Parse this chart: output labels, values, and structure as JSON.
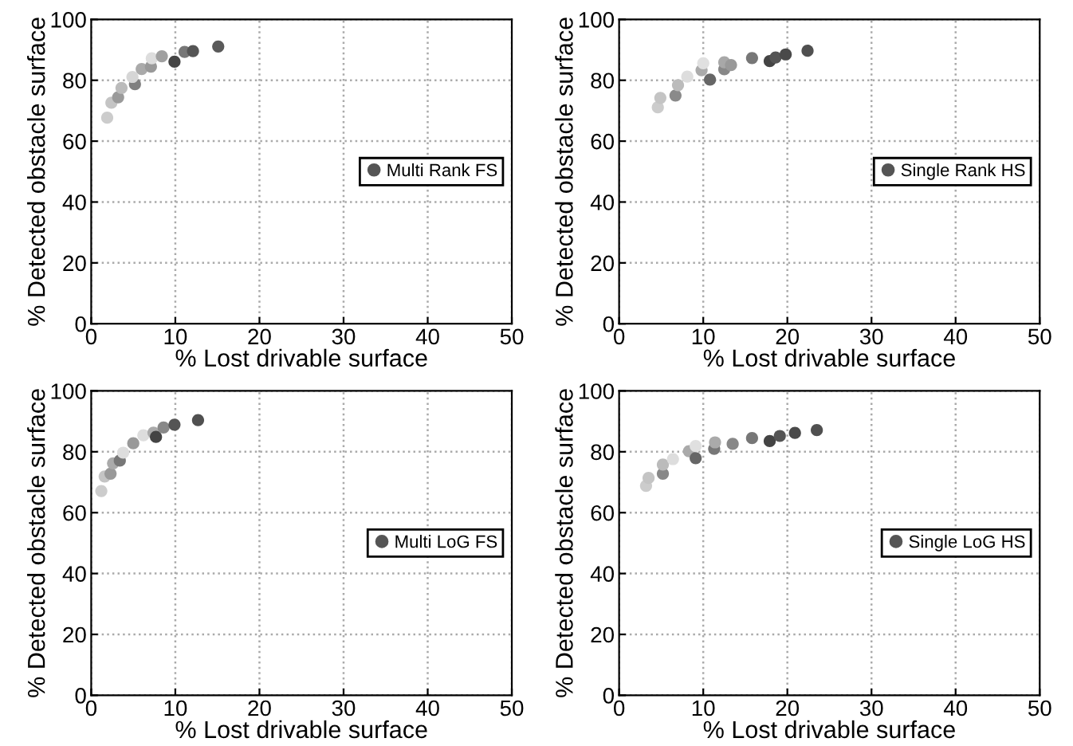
{
  "chart_data": [
    {
      "type": "scatter",
      "xlabel": "% Lost drivable surface",
      "ylabel": "% Detected obstacle surface",
      "xlim": [
        0,
        50
      ],
      "ylim": [
        0,
        100
      ],
      "xticks": [
        0,
        10,
        20,
        30,
        40,
        50
      ],
      "yticks": [
        0,
        20,
        40,
        60,
        80,
        100
      ],
      "grid": true,
      "legend": "right",
      "marker": "circle",
      "series": [
        {
          "name": "Multi Rank FS",
          "color": "#555555",
          "x": [
            1.9,
            2.4,
            3.2,
            3.6,
            5.2,
            4.9,
            6.0,
            7.1,
            7.2,
            8.4,
            9.9,
            11.1,
            12.1,
            15.1
          ],
          "values": [
            67.7,
            72.6,
            74.4,
            77.5,
            78.7,
            81.1,
            83.7,
            84.5,
            87.2,
            87.9,
            86.1,
            89.3,
            89.6,
            91.1
          ],
          "colors": [
            "#cccccc",
            "#c4c4c4",
            "#9a9a9a",
            "#bbbbbb",
            "#808080",
            "#d6d6d6",
            "#aaaaaa",
            "#999999",
            "#dddddd",
            "#a0a0a0",
            "#444444",
            "#777777",
            "#555555",
            "#5a5a5a"
          ]
        }
      ]
    },
    {
      "type": "scatter",
      "xlabel": "% Lost drivable surface",
      "ylabel": "% Detected obstacle surface",
      "xlim": [
        0,
        50
      ],
      "ylim": [
        0,
        100
      ],
      "xticks": [
        0,
        10,
        20,
        30,
        40,
        50
      ],
      "yticks": [
        0,
        20,
        40,
        60,
        80,
        100
      ],
      "grid": true,
      "legend": "right",
      "marker": "circle",
      "series": [
        {
          "name": "Single Rank HS",
          "color": "#555555",
          "x": [
            4.6,
            4.9,
            6.7,
            7.0,
            8.1,
            9.8,
            10.0,
            10.8,
            12.5,
            12.5,
            13.3,
            15.8,
            17.9,
            18.6,
            19.8,
            22.4
          ],
          "values": [
            71.1,
            74.2,
            75.0,
            78.4,
            81.2,
            83.3,
            85.6,
            80.2,
            83.6,
            85.9,
            85.0,
            87.3,
            86.3,
            87.5,
            88.5,
            89.7
          ],
          "colors": [
            "#cccccc",
            "#c4c4c4",
            "#8a8a8a",
            "#bbbbbb",
            "#dddddd",
            "#aaaaaa",
            "#e0e0e0",
            "#666666",
            "#888888",
            "#a8a8a8",
            "#999999",
            "#777777",
            "#444444",
            "#555555",
            "#4a4a4a",
            "#505050"
          ]
        }
      ]
    },
    {
      "type": "scatter",
      "xlabel": "% Lost drivable surface",
      "ylabel": "% Detected obstacle surface",
      "xlim": [
        0,
        50
      ],
      "ylim": [
        0,
        100
      ],
      "xticks": [
        0,
        10,
        20,
        30,
        40,
        50
      ],
      "yticks": [
        0,
        20,
        40,
        60,
        80,
        100
      ],
      "grid": true,
      "legend": "right",
      "marker": "circle",
      "series": [
        {
          "name": "Multi LoG FS",
          "color": "#555555",
          "x": [
            1.2,
            1.6,
            2.3,
            2.6,
            3.4,
            3.8,
            5.0,
            6.2,
            7.4,
            7.7,
            8.6,
            9.9,
            12.7
          ],
          "values": [
            67.1,
            71.9,
            72.8,
            76.2,
            77.1,
            79.7,
            82.8,
            85.4,
            86.3,
            84.9,
            88.0,
            88.9,
            90.4
          ],
          "colors": [
            "#cccccc",
            "#c4c4c4",
            "#999999",
            "#aaaaaa",
            "#777777",
            "#dddddd",
            "#999999",
            "#dddddd",
            "#aaaaaa",
            "#444444",
            "#888888",
            "#555555",
            "#505050"
          ]
        }
      ]
    },
    {
      "type": "scatter",
      "xlabel": "% Lost drivable surface",
      "ylabel": "% Detected obstacle surface",
      "xlim": [
        0,
        50
      ],
      "ylim": [
        0,
        100
      ],
      "xticks": [
        0,
        10,
        20,
        30,
        40,
        50
      ],
      "yticks": [
        0,
        20,
        40,
        60,
        80,
        100
      ],
      "grid": true,
      "legend": "right",
      "marker": "circle",
      "series": [
        {
          "name": "Single LoG HS",
          "color": "#555555",
          "x": [
            3.2,
            3.5,
            5.2,
            5.2,
            6.4,
            8.3,
            9.1,
            9.1,
            11.3,
            11.4,
            13.5,
            15.8,
            17.9,
            19.1,
            20.9,
            23.5
          ],
          "values": [
            68.8,
            71.4,
            72.8,
            75.8,
            77.6,
            80.2,
            81.9,
            77.9,
            81.0,
            83.1,
            82.6,
            84.5,
            83.5,
            85.2,
            86.2,
            87.1
          ],
          "colors": [
            "#cccccc",
            "#c4c4c4",
            "#888888",
            "#bbbbbb",
            "#dddddd",
            "#aaaaaa",
            "#e0e0e0",
            "#666666",
            "#777777",
            "#aaaaaa",
            "#888888",
            "#777777",
            "#444444",
            "#555555",
            "#4a4a4a",
            "#505050"
          ]
        }
      ]
    }
  ]
}
